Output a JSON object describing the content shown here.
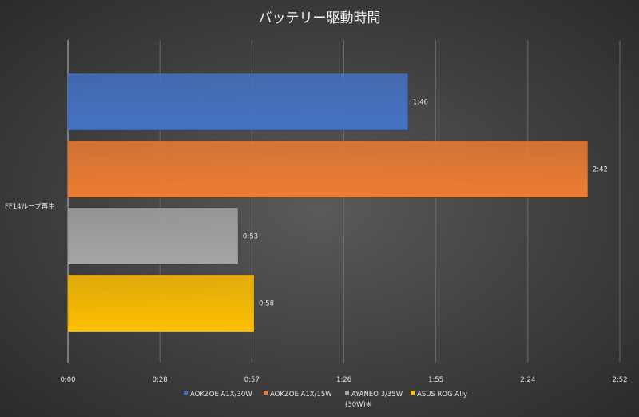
{
  "chart_data": {
    "type": "bar",
    "orientation": "horizontal",
    "title": "バッテリー駆動時間",
    "categories": [
      "FF14ループ再生"
    ],
    "x_tick_labels": [
      "0:00",
      "0:28",
      "0:57",
      "1:26",
      "1:55",
      "2:24",
      "2:52"
    ],
    "xlim_minutes": [
      0,
      172
    ],
    "grid": true,
    "legend_position": "bottom",
    "series": [
      {
        "name": "AOKZOE A1X/30W",
        "value_minutes": 106,
        "label": "1:46",
        "color": "#4472c4"
      },
      {
        "name": "AOKZOE A1X/15W",
        "value_minutes": 162,
        "label": "2:42",
        "color": "#ed7d31"
      },
      {
        "name": "AYANEO 3/35W (30W)※",
        "legend_lines": [
          "AYANEO 3/35W",
          "(30W)※"
        ],
        "value_minutes": 53,
        "label": "0:53",
        "color": "#a5a5a5"
      },
      {
        "name": "ASUS ROG Ally",
        "value_minutes": 58,
        "label": "0:58",
        "color": "#ffc000"
      }
    ]
  }
}
